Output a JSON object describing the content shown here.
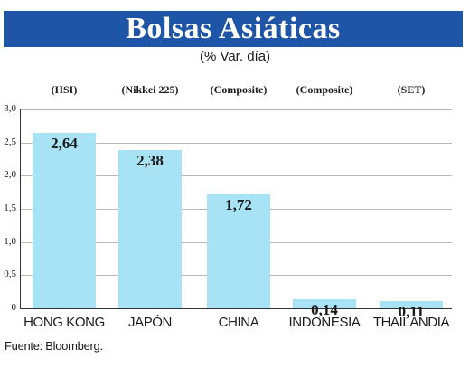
{
  "chart_data": {
    "type": "bar",
    "title": "Bolsas Asiáticas",
    "subtitle": "(% Var. día)",
    "categories": [
      "HONG KONG",
      "JAPÓN",
      "CHINA",
      "INDONESIA",
      "THAILANDIA"
    ],
    "indices": [
      "(HSI)",
      "(Nikkei 225)",
      "(Composite)",
      "(Composite)",
      "(SET)"
    ],
    "values": [
      2.64,
      2.38,
      1.72,
      0.14,
      0.11
    ],
    "value_labels": [
      "2,64",
      "2,38",
      "1,72",
      "0,14",
      "0,11"
    ],
    "ylim": [
      0,
      3.0
    ],
    "yticks": [
      "0",
      "0,5",
      "1,0",
      "1,5",
      "2,0",
      "2,5",
      "3,0"
    ],
    "grid": true,
    "bar_color": "#a8e3f5",
    "xlabel": "",
    "ylabel": ""
  },
  "header": {
    "banner_color": "#1e55a6"
  },
  "footer": {
    "source": "Fuente: Bloomberg."
  }
}
